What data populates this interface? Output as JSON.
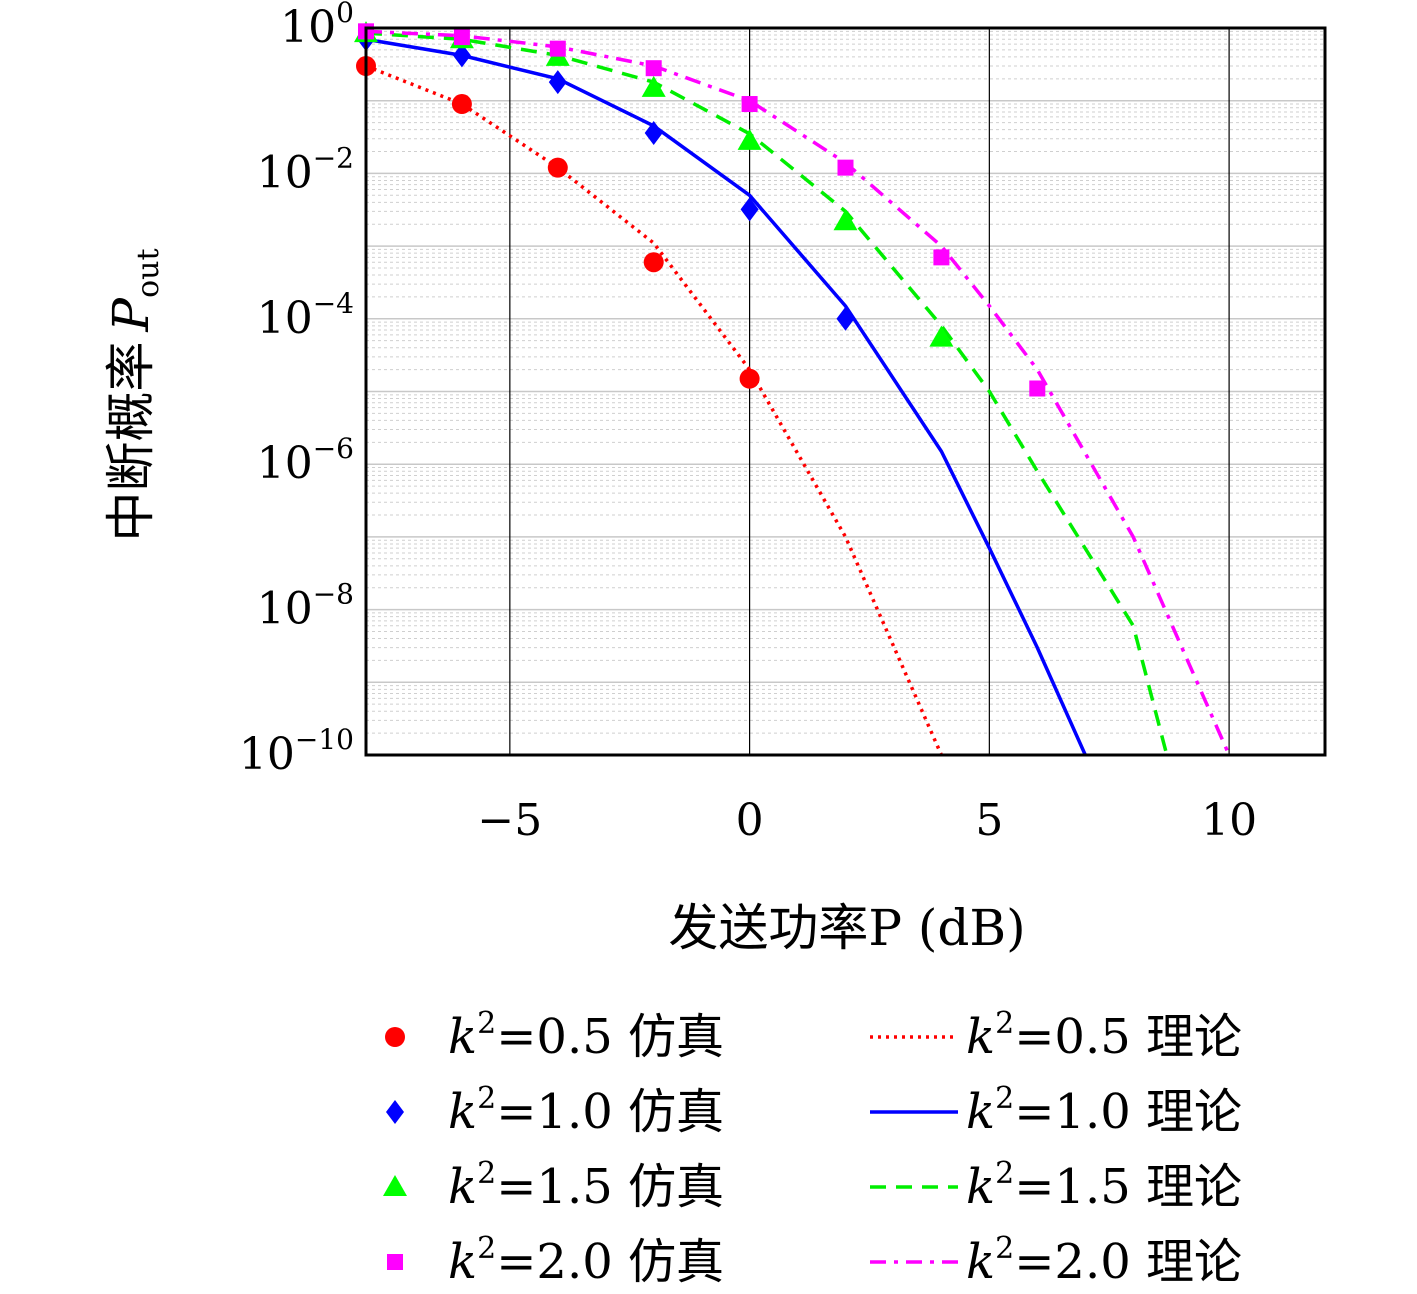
{
  "chart_data": {
    "type": "line",
    "xlabel": "发送功率P (dB)",
    "ylabel": "中断概率",
    "ylabel_symbol": "P",
    "ylabel_subscript": "out",
    "y_scale": "log",
    "xlim": [
      -8,
      12
    ],
    "ylim": [
      1e-10,
      1
    ],
    "grid": true,
    "x_ticks": [
      {
        "value": -5,
        "label": "−5"
      },
      {
        "value": 0,
        "label": "0"
      },
      {
        "value": 5,
        "label": "5"
      },
      {
        "value": 10,
        "label": "10"
      }
    ],
    "y_ticks": [
      {
        "exp": 0,
        "base": "10",
        "sup": "0"
      },
      {
        "exp": -2,
        "base": "10",
        "sup": "−2"
      },
      {
        "exp": -4,
        "base": "10",
        "sup": "−4"
      },
      {
        "exp": -6,
        "base": "10",
        "sup": "−6"
      },
      {
        "exp": -8,
        "base": "10",
        "sup": "−8"
      },
      {
        "exp": -10,
        "base": "10",
        "sup": "−10"
      }
    ],
    "legend_placement": "bottom, outside plot, two columns",
    "series": [
      {
        "name": "k²=0.5 仿真",
        "kind": "simulation",
        "marker": "circle",
        "color": "#ff0000",
        "x": [
          -8,
          -6,
          -4,
          -2,
          0
        ],
        "y": [
          0.3,
          0.09,
          0.012,
          0.0006,
          1.5e-05
        ]
      },
      {
        "name": "k²=1.0 仿真",
        "kind": "simulation",
        "marker": "diamond",
        "color": "#0000ff",
        "x": [
          -8,
          -6,
          -4,
          -2,
          0,
          2
        ],
        "y": [
          0.7,
          0.42,
          0.18,
          0.036,
          0.0032,
          0.0001
        ]
      },
      {
        "name": "k²=1.5 仿真",
        "kind": "simulation",
        "marker": "triangle",
        "color": "#00ff00",
        "x": [
          -8,
          -6,
          -4,
          -2,
          0,
          2,
          4
        ],
        "y": [
          0.85,
          0.7,
          0.4,
          0.15,
          0.028,
          0.0022,
          5.5e-05
        ]
      },
      {
        "name": "k²=2.0 仿真",
        "kind": "simulation",
        "marker": "square",
        "color": "#ff00ff",
        "x": [
          -8,
          -6,
          -4,
          -2,
          0,
          2,
          4,
          6
        ],
        "y": [
          0.9,
          0.75,
          0.52,
          0.28,
          0.09,
          0.012,
          0.0007,
          1.1e-05
        ]
      },
      {
        "name": "k²=0.5 理论",
        "kind": "theory",
        "dash": "dotted",
        "color": "#ff0000",
        "x": [
          -8,
          -6,
          -4,
          -2,
          0,
          2,
          4
        ],
        "y": [
          0.3,
          0.09,
          0.012,
          0.0011,
          2e-05,
          1e-07,
          1e-10
        ]
      },
      {
        "name": "k²=1.0 理论",
        "kind": "theory",
        "dash": "solid",
        "color": "#0000ff",
        "x": [
          -8,
          -6,
          -4,
          -2,
          0,
          2,
          4,
          5,
          6,
          7
        ],
        "y": [
          0.7,
          0.42,
          0.2,
          0.045,
          0.005,
          0.00015,
          1.5e-06,
          7e-08,
          3e-09,
          1e-10
        ]
      },
      {
        "name": "k²=1.5 理论",
        "kind": "theory",
        "dash": "dashed",
        "color": "#00ee00",
        "x": [
          -8,
          -6,
          -4,
          -2,
          0,
          2,
          4,
          5,
          6,
          8,
          8.7
        ],
        "y": [
          0.85,
          0.7,
          0.42,
          0.18,
          0.035,
          0.003,
          8e-05,
          1e-05,
          8e-07,
          6e-09,
          1e-10
        ]
      },
      {
        "name": "k²=2.0 理论",
        "kind": "theory",
        "dash": "dashdot",
        "color": "#ff00ff",
        "x": [
          -8,
          -6,
          -4,
          -2,
          0,
          2,
          4,
          5,
          6,
          8,
          10
        ],
        "y": [
          0.9,
          0.78,
          0.55,
          0.3,
          0.1,
          0.014,
          0.001,
          0.00015,
          2e-05,
          1e-07,
          1e-10
        ]
      }
    ]
  },
  "legend": {
    "items": [
      {
        "k_symbol": "k",
        "k_sup": "2",
        "rest": "=0.5 仿真"
      },
      {
        "k_symbol": "k",
        "k_sup": "2",
        "rest": "=1.0 仿真"
      },
      {
        "k_symbol": "k",
        "k_sup": "2",
        "rest": "=1.5 仿真"
      },
      {
        "k_symbol": "k",
        "k_sup": "2",
        "rest": "=2.0 仿真"
      },
      {
        "k_symbol": "k",
        "k_sup": "2",
        "rest": "=0.5 理论"
      },
      {
        "k_symbol": "k",
        "k_sup": "2",
        "rest": "=1.0 理论"
      },
      {
        "k_symbol": "k",
        "k_sup": "2",
        "rest": "=1.5 理论"
      },
      {
        "k_symbol": "k",
        "k_sup": "2",
        "rest": "=2.0 理论"
      }
    ]
  }
}
